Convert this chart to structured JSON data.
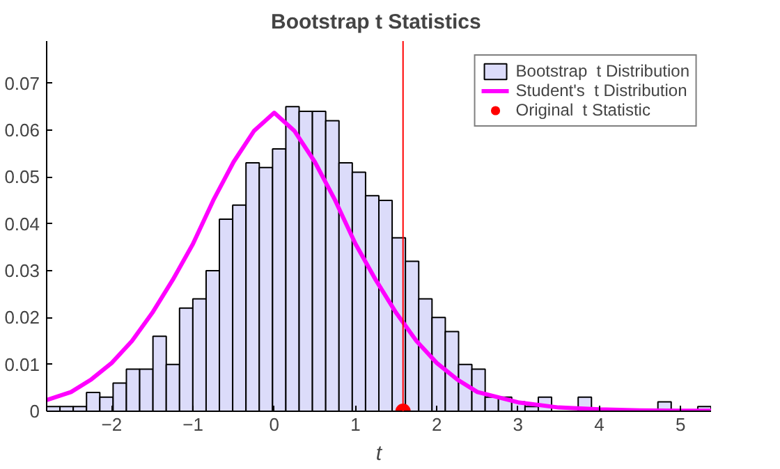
{
  "chart_data": {
    "type": "histogram",
    "title": "Bootstrap  t Statistics",
    "xlabel": "t",
    "bins": [
      -2.8,
      -2.6365,
      -2.473,
      -2.3095,
      -2.146,
      -1.9825,
      -1.819,
      -1.6555,
      -1.492,
      -1.3285,
      -1.165,
      -1.0015,
      -0.838,
      -0.6745,
      -0.511,
      -0.3475,
      -0.184,
      -0.0205,
      0.143,
      0.3065,
      0.47,
      0.6335,
      0.797,
      0.9605,
      1.124,
      1.2875,
      1.451,
      1.6145,
      1.778,
      1.9415,
      2.105,
      2.2685,
      2.432,
      2.5955,
      2.759,
      2.9225,
      3.086,
      3.2495,
      3.413,
      3.5765,
      3.74,
      3.9035,
      4.067,
      4.2305,
      4.394,
      4.5575,
      4.721,
      4.8845,
      5.048,
      5.2115,
      5.375
    ],
    "series": [
      {
        "name": "Bootstrap  t Distribution",
        "color": "#dcdcfa",
        "values": [
          0.001,
          0.001,
          0.001,
          0.004,
          0.003,
          0.006,
          0.009,
          0.009,
          0.016,
          0.01,
          0.022,
          0.024,
          0.03,
          0.041,
          0.044,
          0.053,
          0.052,
          0.056,
          0.065,
          0.064,
          0.064,
          0.062,
          0.053,
          0.051,
          0.046,
          0.045,
          0.037,
          0.032,
          0.024,
          0.02,
          0.017,
          0.01,
          0.009,
          0.003,
          0.003,
          0.002,
          0.001,
          0.003,
          null,
          0,
          0.003,
          null,
          0,
          null,
          0,
          0,
          0.002,
          0,
          0,
          0.001
        ]
      },
      {
        "name": "Student's  t Distribution",
        "type": "line",
        "color": "#ff00ff",
        "x": [
          -2.8,
          -2.5,
          -2.25,
          -2,
          -1.75,
          -1.5,
          -1.25,
          -1,
          -0.75,
          -0.5,
          -0.25,
          0,
          0.25,
          0.5,
          0.75,
          1,
          1.25,
          1.5,
          1.75,
          2,
          2.25,
          2.5,
          3,
          3.5,
          4,
          4.5,
          5,
          5.375
        ],
        "values": [
          0.0024,
          0.0041,
          0.0068,
          0.0103,
          0.015,
          0.021,
          0.028,
          0.0357,
          0.045,
          0.0532,
          0.0598,
          0.0637,
          0.0598,
          0.0532,
          0.045,
          0.0357,
          0.028,
          0.021,
          0.015,
          0.0103,
          0.0068,
          0.0041,
          0.0019,
          0.0008,
          0.0004,
          0.0002,
          0.0001,
          0.0001
        ]
      },
      {
        "name": "Original  t Statistic",
        "type": "scatter",
        "color": "#ff0000",
        "marker": "circle",
        "x": [
          1.585
        ],
        "values": [
          0
        ]
      }
    ],
    "ref_lines": [
      {
        "axis": "x",
        "value": 1.585,
        "color": "#ff0000"
      }
    ],
    "xlim": [
      -2.8,
      5.375
    ],
    "ylim": [
      0,
      0.079
    ],
    "xticks": [
      -2,
      -1,
      0,
      1,
      2,
      3,
      4,
      5
    ],
    "yticks": [
      0,
      0.01,
      0.02,
      0.03,
      0.04,
      0.05,
      0.06,
      0.07
    ],
    "grid": false,
    "legend": "top right"
  }
}
